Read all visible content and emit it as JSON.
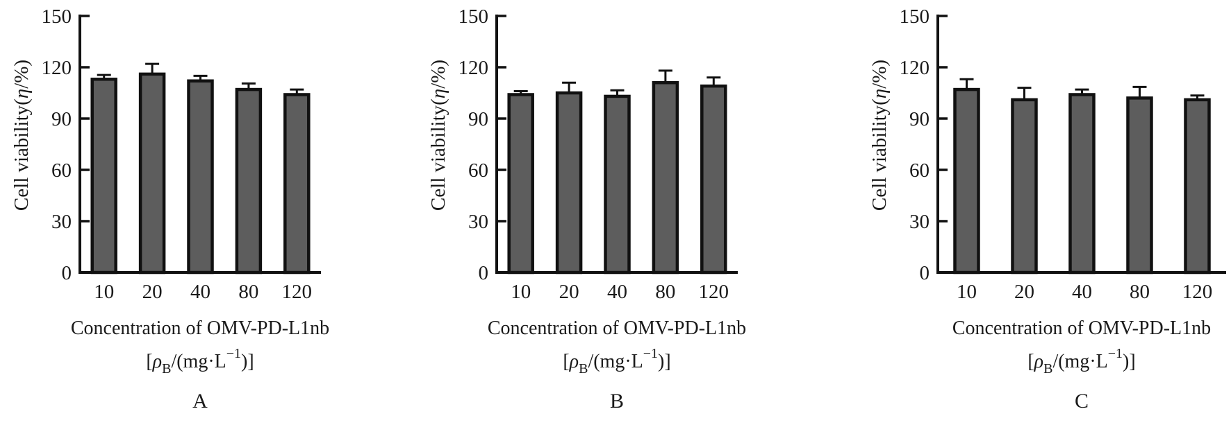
{
  "labels": {
    "y_prefix": "Cell viability(",
    "y_symbol": "η",
    "y_suffix": "/%)",
    "x_line1": "Concentration of OMV-PD-L1nb",
    "x2_open": "[",
    "x2_rho": "ρ",
    "x2_sub": "B",
    "x2_mid": "/(mg·L",
    "x2_sup": "−1",
    "x2_close": ")]"
  },
  "chart_data": [
    {
      "type": "bar",
      "panel_label": "A",
      "title": "",
      "ylabel": "Cell viability(η/%)",
      "xlabel": "Concentration of OMV-PD-L1nb [ρB/(mg·L−1)]",
      "categories": [
        "10",
        "20",
        "40",
        "80",
        "120"
      ],
      "values": [
        113,
        116,
        112,
        107,
        104
      ],
      "errors": [
        2.5,
        6,
        3,
        3.5,
        3
      ],
      "yticks": [
        0,
        30,
        60,
        90,
        120,
        150
      ],
      "ylim": [
        0,
        150
      ],
      "grid": false,
      "legend": null,
      "bar_color": "#5d5d5d",
      "bar_border": "#111111",
      "error_color": "#111111"
    },
    {
      "type": "bar",
      "panel_label": "B",
      "title": "",
      "ylabel": "Cell viability(η/%)",
      "xlabel": "Concentration of OMV-PD-L1nb [ρB/(mg·L−1)]",
      "categories": [
        "10",
        "20",
        "40",
        "80",
        "120"
      ],
      "values": [
        104,
        105,
        103,
        111,
        109
      ],
      "errors": [
        2,
        6,
        3.5,
        7,
        5
      ],
      "yticks": [
        0,
        30,
        60,
        90,
        120,
        150
      ],
      "ylim": [
        0,
        150
      ],
      "grid": false,
      "legend": null,
      "bar_color": "#5d5d5d",
      "bar_border": "#111111",
      "error_color": "#111111"
    },
    {
      "type": "bar",
      "panel_label": "C",
      "title": "",
      "ylabel": "Cell viability(η/%)",
      "xlabel": "Concentration of OMV-PD-L1nb [ρB/(mg·L−1)]",
      "categories": [
        "10",
        "20",
        "40",
        "80",
        "120"
      ],
      "values": [
        107,
        101,
        104,
        102,
        101
      ],
      "errors": [
        6,
        7,
        3,
        6.5,
        2.5
      ],
      "yticks": [
        0,
        30,
        60,
        90,
        120,
        150
      ],
      "ylim": [
        0,
        150
      ],
      "grid": false,
      "legend": null,
      "bar_color": "#5d5d5d",
      "bar_border": "#111111",
      "error_color": "#111111"
    }
  ]
}
